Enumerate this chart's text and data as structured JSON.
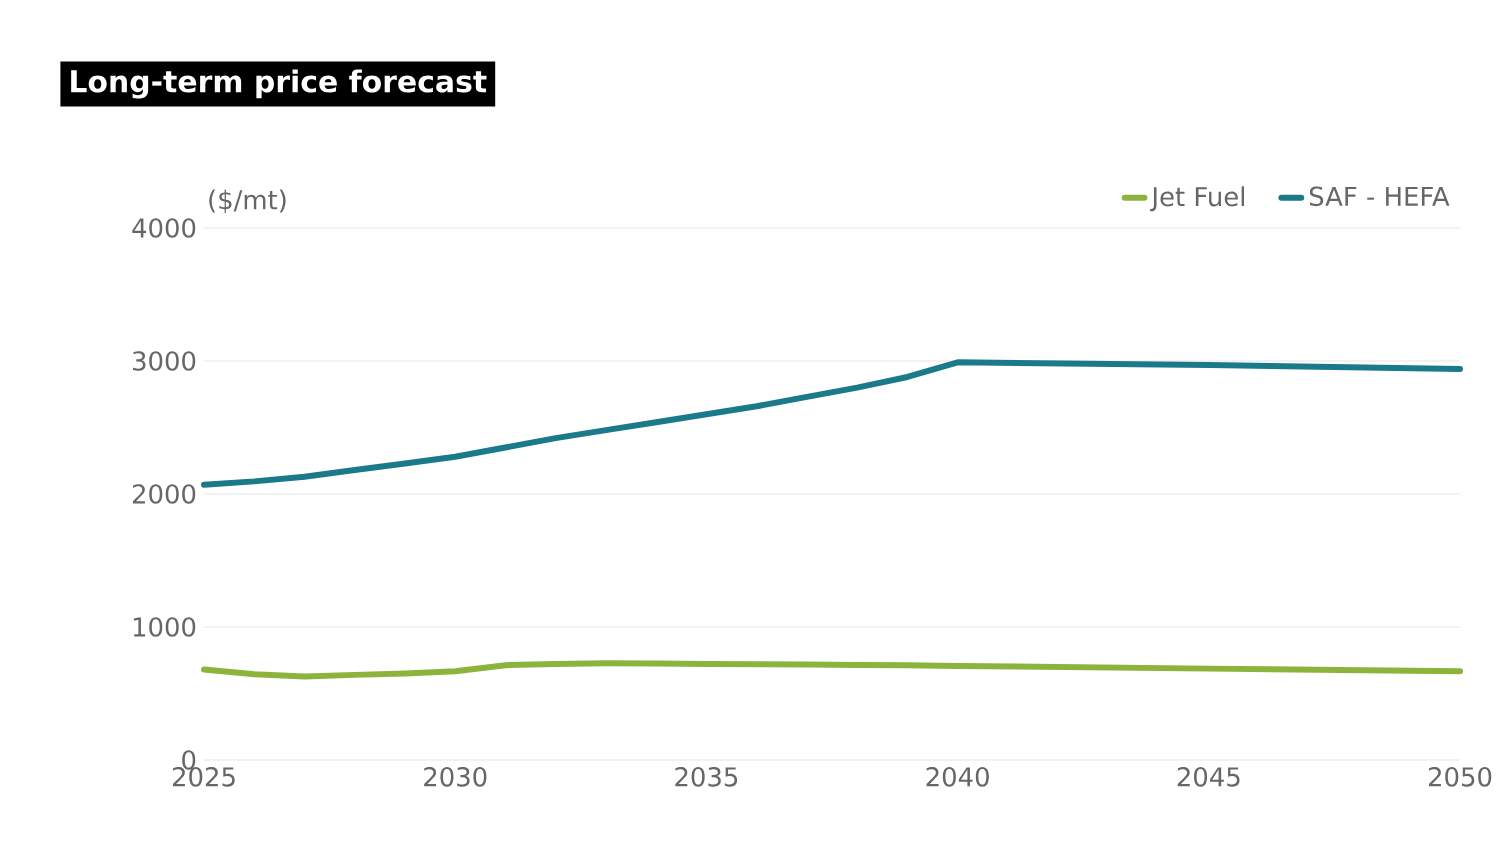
{
  "chart_data": {
    "type": "line",
    "title": "Long-term price forecast",
    "ylabel": "($/mt)",
    "x": [
      2025,
      2026,
      2027,
      2028,
      2029,
      2030,
      2031,
      2032,
      2033,
      2034,
      2035,
      2036,
      2037,
      2038,
      2039,
      2040,
      2045,
      2050
    ],
    "series": [
      {
        "name": "Jet Fuel",
        "color": "#8cb43c",
        "values": [
          680,
          645,
          627,
          640,
          650,
          667,
          713,
          722,
          727,
          725,
          722,
          720,
          718,
          715,
          712,
          707,
          687,
          667
        ]
      },
      {
        "name": "SAF - HEFA",
        "color": "#1a7a8a",
        "values": [
          2070,
          2095,
          2130,
          2180,
          2230,
          2280,
          2350,
          2420,
          2480,
          2540,
          2600,
          2660,
          2730,
          2800,
          2880,
          2990,
          2970,
          2940
        ]
      }
    ],
    "xlim": [
      2025,
      2050
    ],
    "xticks": [
      2025,
      2030,
      2035,
      2040,
      2045,
      2050
    ],
    "ylim": [
      0,
      4000
    ],
    "yticks": [
      0,
      1000,
      2000,
      3000,
      4000
    ],
    "grid": "y",
    "legend": "top right",
    "marker": "none",
    "line_style": "solid"
  }
}
